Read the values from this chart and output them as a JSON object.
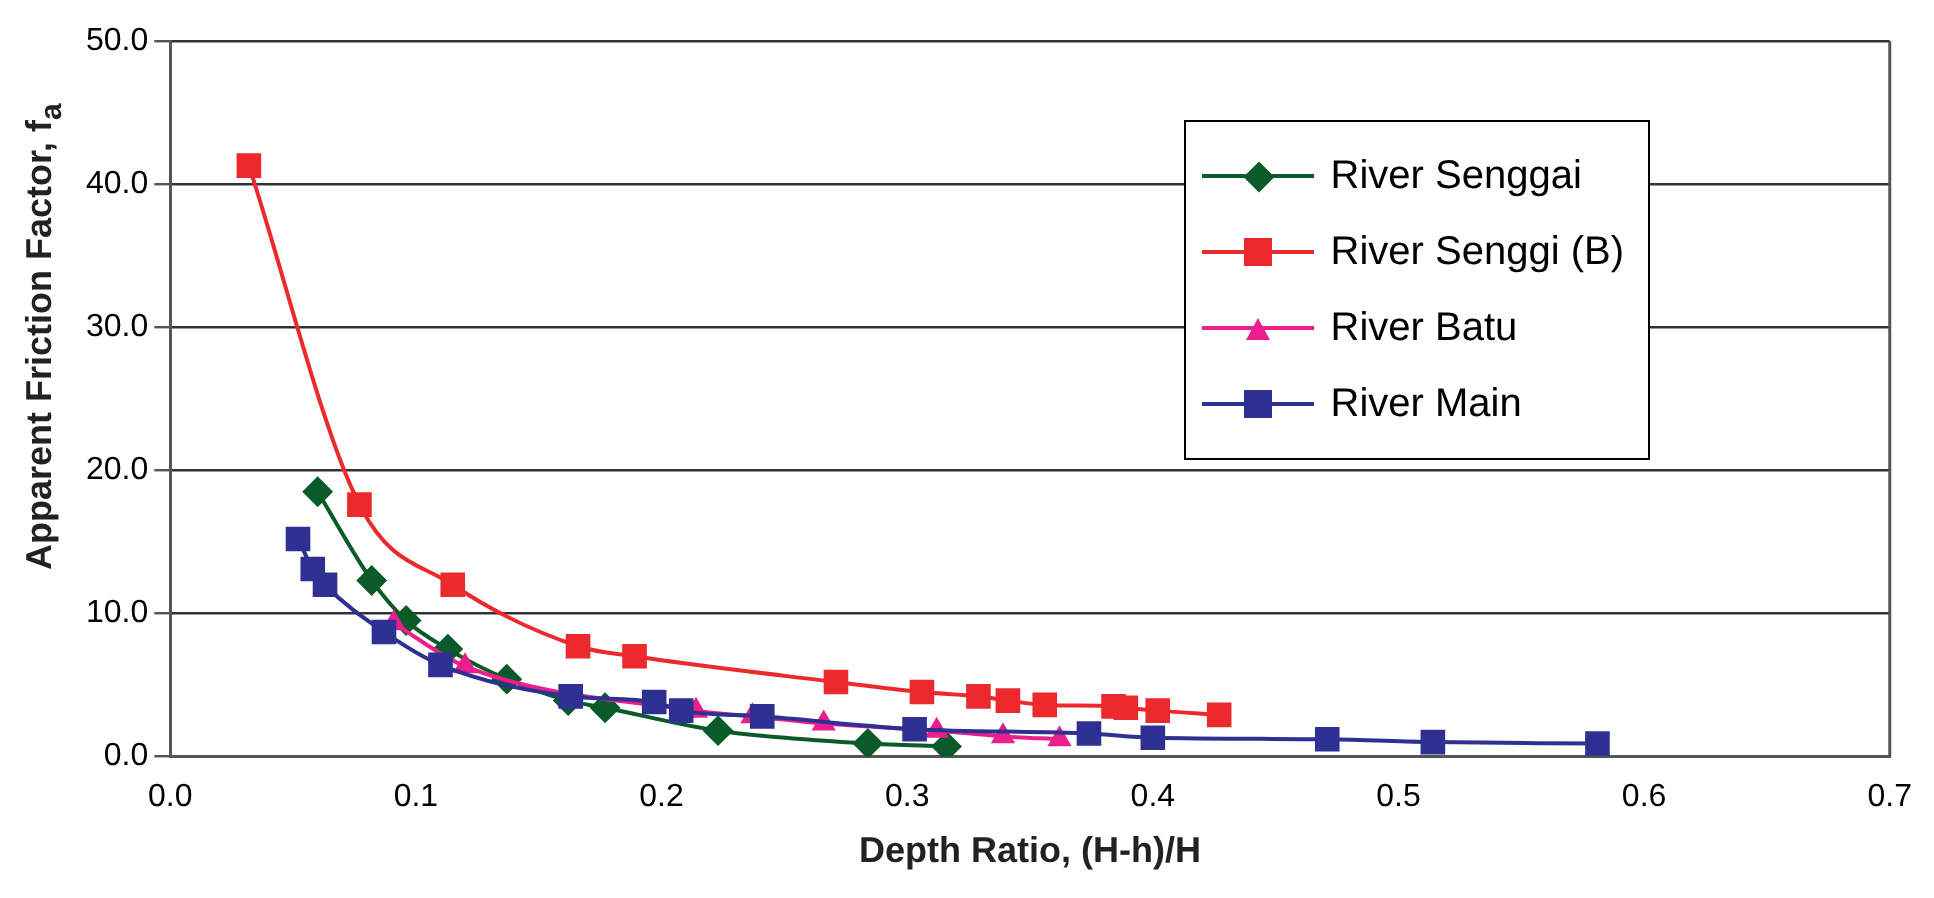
{
  "chart_data": {
    "type": "line",
    "xlabel": "Depth Ratio, (H-h)/H",
    "ylabel": "Apparent Friction Factor, f$_{a}$",
    "xlim": [
      0,
      0.7
    ],
    "xticks": [
      {
        "value": 0,
        "label": "0.0"
      },
      0.1,
      0.2,
      0.3,
      0.4,
      0.5,
      0.6,
      0.7
    ],
    "ylim": [
      0,
      50
    ],
    "yticks": [
      {
        "value": 0,
        "label": "0.0"
      },
      {
        "value": 10,
        "label": "10.0"
      },
      {
        "value": 20,
        "label": "20.0"
      },
      {
        "value": 30,
        "label": "30.0"
      },
      {
        "value": 40,
        "label": "40.0"
      },
      {
        "value": 50,
        "label": "50.0"
      }
    ],
    "grid": "y",
    "legend": "top right",
    "series": [
      {
        "name": "River Senggai",
        "color": "#0b5a2a",
        "marker": "diamond",
        "x": [
          0.06,
          0.082,
          0.096,
          0.113,
          0.137,
          0.162,
          0.177,
          0.223,
          0.284,
          0.316
        ],
        "values": [
          18.5,
          12.3,
          9.5,
          7.5,
          5.4,
          3.9,
          3.4,
          1.8,
          0.9,
          0.7
        ]
      },
      {
        "name": "River Senggi (B)",
        "color": "#ec2a2e",
        "marker": "square",
        "x": [
          0.032,
          0.077,
          0.115,
          0.166,
          0.189,
          0.271,
          0.306,
          0.329,
          0.341,
          0.356,
          0.384,
          0.389,
          0.402,
          0.427
        ],
        "values": [
          41.3,
          17.6,
          12.0,
          7.7,
          7.0,
          5.2,
          4.5,
          4.2,
          3.9,
          3.6,
          3.5,
          3.4,
          3.2,
          2.9
        ]
      },
      {
        "name": "River Batu",
        "color": "#ea1e8c",
        "marker": "triangle",
        "x": [
          0.091,
          0.12,
          0.214,
          0.237,
          0.266,
          0.312,
          0.339,
          0.362
        ],
        "values": [
          9.3,
          6.3,
          3.2,
          2.8,
          2.3,
          1.8,
          1.4,
          1.2
        ]
      },
      {
        "name": "River Main",
        "color": "#2e3192",
        "marker": "square",
        "x": [
          0.052,
          0.058,
          0.063,
          0.087,
          0.11,
          0.163,
          0.197,
          0.208,
          0.241,
          0.303,
          0.374,
          0.4,
          0.471,
          0.514,
          0.581
        ],
        "values": [
          15.2,
          13.1,
          12.0,
          8.7,
          6.4,
          4.2,
          3.8,
          3.2,
          2.8,
          1.9,
          1.6,
          1.3,
          1.2,
          1.0,
          0.9
        ]
      }
    ]
  }
}
